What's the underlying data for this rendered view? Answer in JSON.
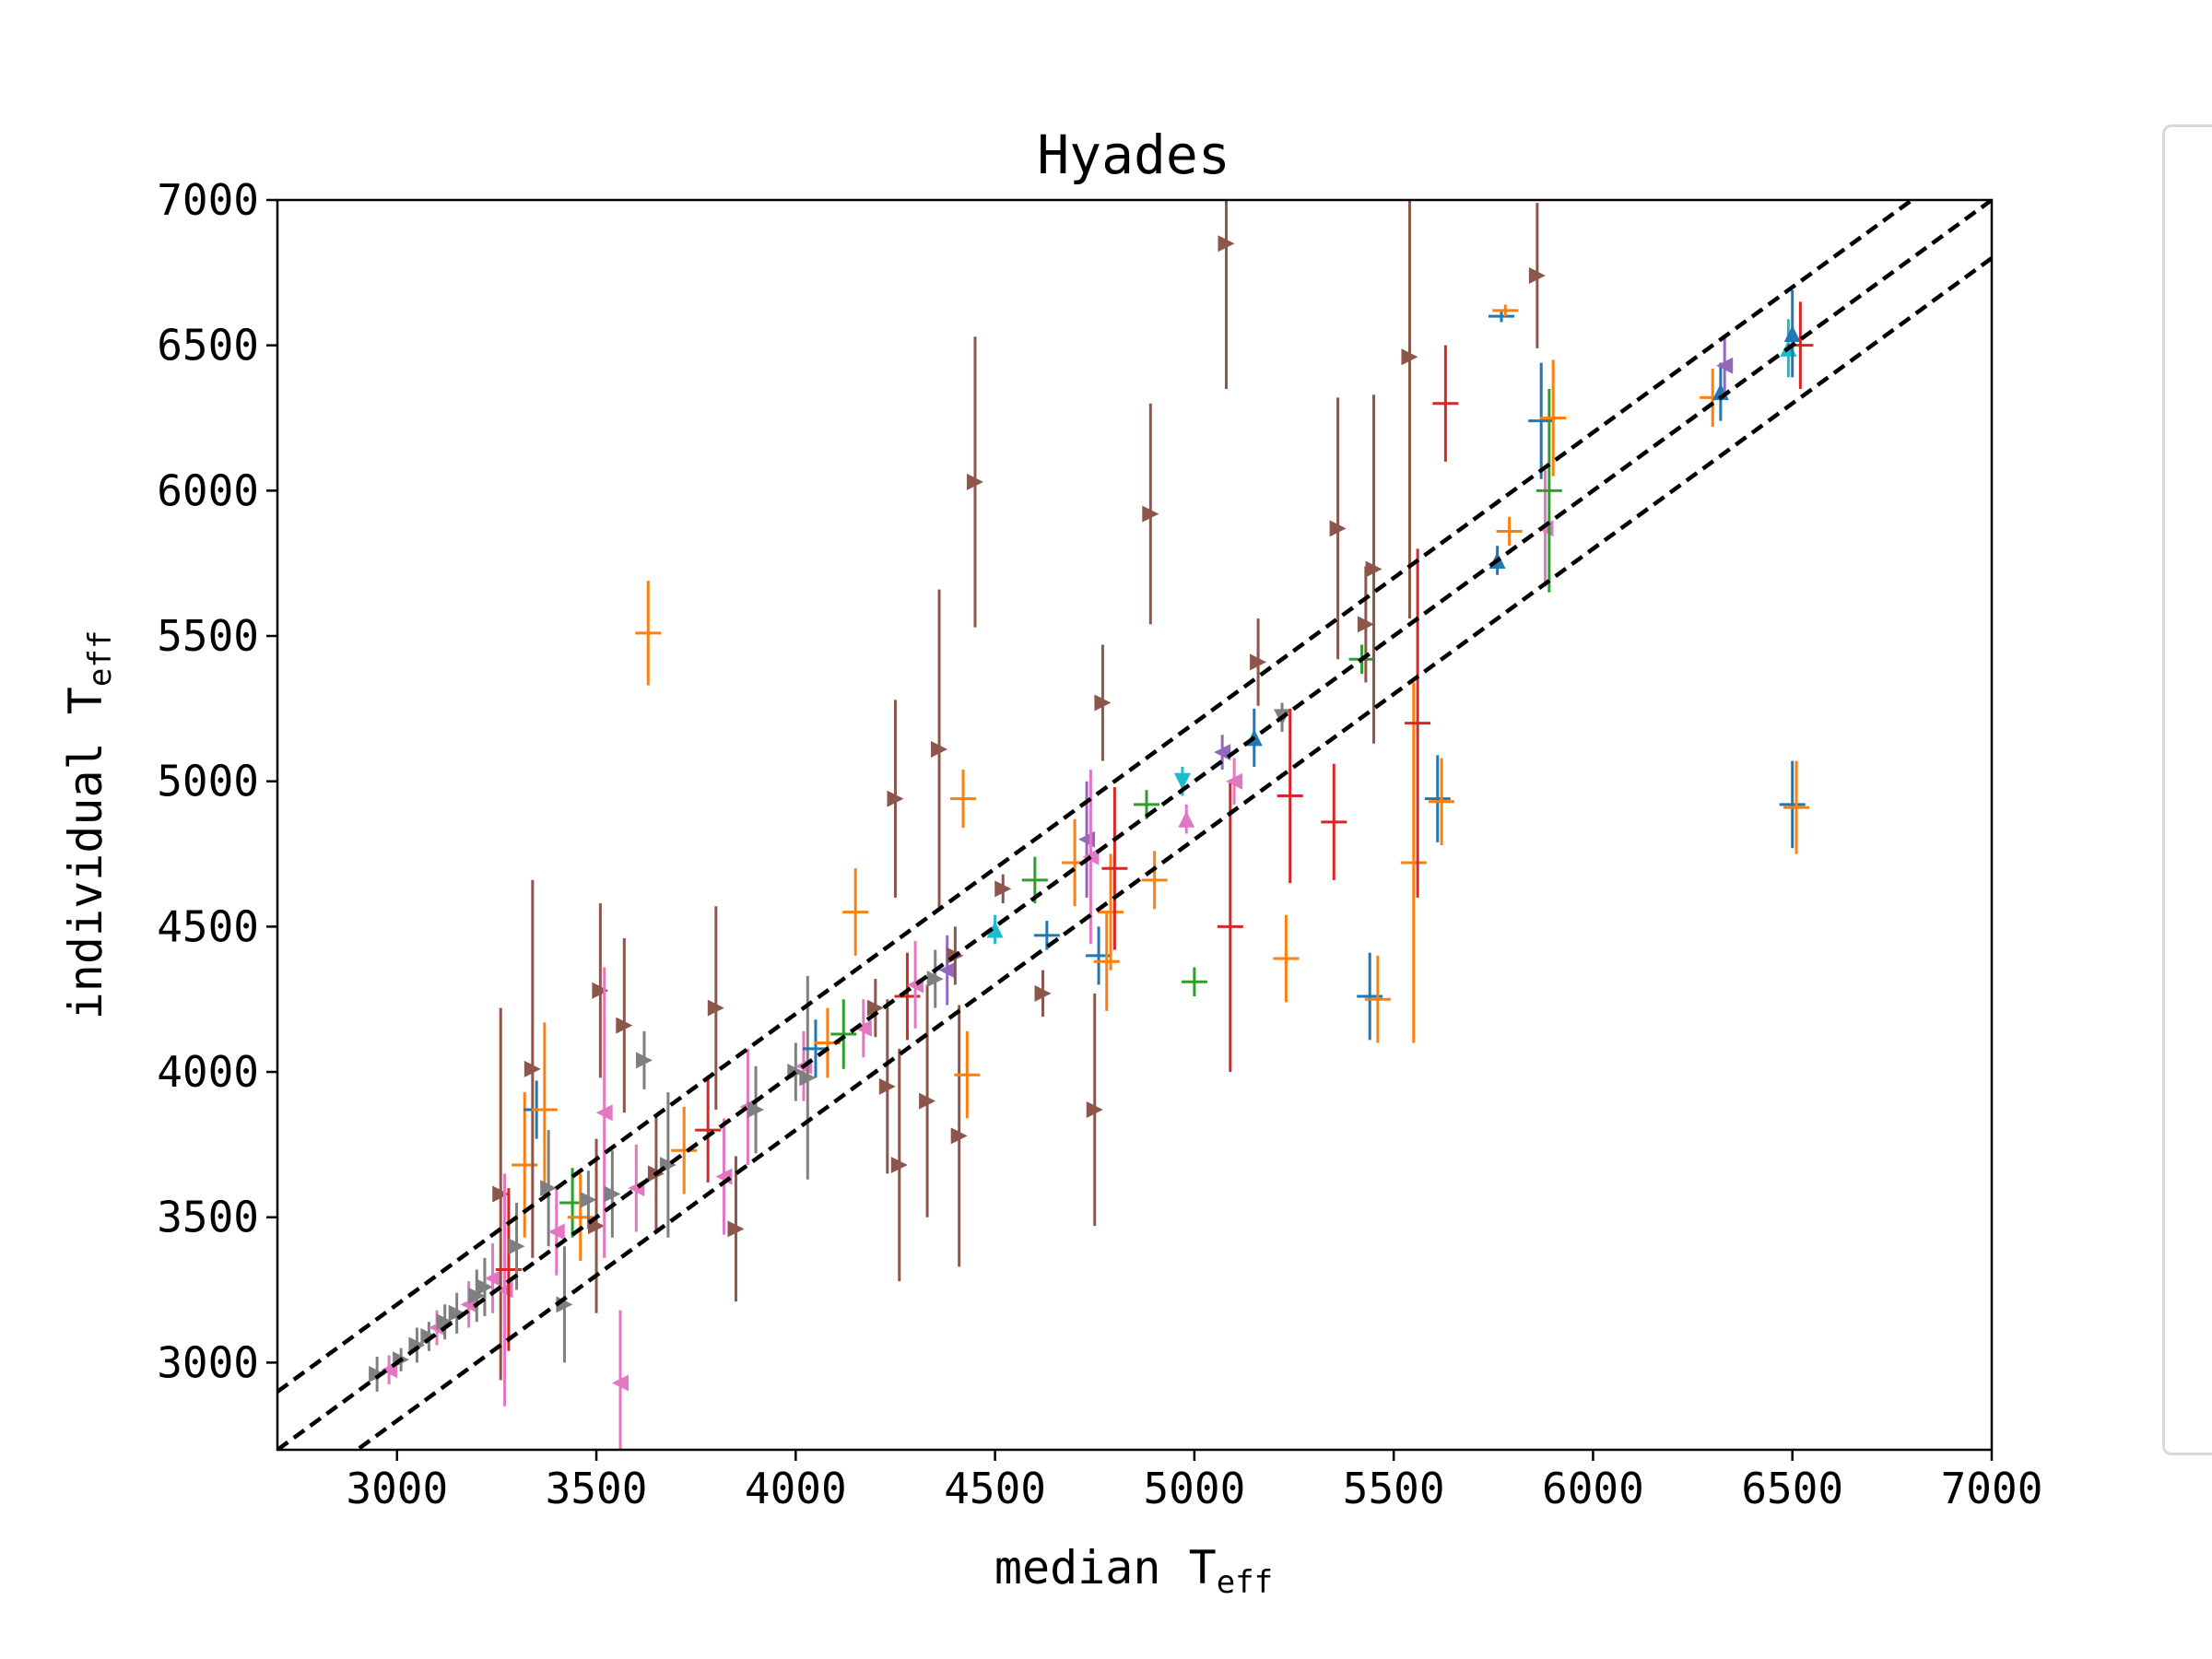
{
  "chart_data": {
    "type": "scatter",
    "title": "Hyades",
    "xlabel": "median T",
    "xlabel_sub": "eff",
    "ylabel": "individual T",
    "ylabel_sub": "eff",
    "xlim": [
      2700,
      7000
    ],
    "ylim": [
      2700,
      7000
    ],
    "xticks": [
      "3000",
      "3500",
      "4000",
      "4500",
      "5000",
      "5500",
      "6000",
      "6500",
      "7000"
    ],
    "yticks": [
      "3000",
      "3500",
      "4000",
      "4500",
      "5000",
      "5500",
      "6000",
      "6500",
      "7000"
    ],
    "grid": false,
    "legend": "right (cropped)",
    "reference_lines": [
      {
        "style": "dashed",
        "color": "#000000",
        "offset": 0,
        "label": ""
      },
      {
        "style": "dashed",
        "color": "#000000",
        "offset": 200,
        "label": ""
      },
      {
        "style": "dashed",
        "color": "#000000",
        "offset": -200,
        "label": ""
      }
    ],
    "series_colors": [
      "#1f77b4",
      "#ff7f0e",
      "#2ca02c",
      "#d62728",
      "#9467bd",
      "#8c564b",
      "#e377c2",
      "#7f7f7f",
      "#17becf"
    ],
    "points": [
      {
        "x": 2950,
        "y": 2960,
        "err": 60,
        "c": 7,
        "m": "right"
      },
      {
        "x": 2980,
        "y": 2975,
        "err": 50,
        "c": 6,
        "m": "left"
      },
      {
        "x": 3010,
        "y": 3010,
        "err": 40,
        "c": 7,
        "m": "right"
      },
      {
        "x": 3050,
        "y": 3060,
        "err": 60,
        "c": 7,
        "m": "right"
      },
      {
        "x": 3080,
        "y": 3090,
        "err": 50,
        "c": 7,
        "m": "right"
      },
      {
        "x": 3100,
        "y": 3120,
        "err": 60,
        "c": 6,
        "m": "left"
      },
      {
        "x": 3120,
        "y": 3140,
        "err": 60,
        "c": 7,
        "m": "right"
      },
      {
        "x": 3150,
        "y": 3170,
        "err": 70,
        "c": 7,
        "m": "right"
      },
      {
        "x": 3180,
        "y": 3200,
        "err": 80,
        "c": 6,
        "m": "left"
      },
      {
        "x": 3200,
        "y": 3230,
        "err": 90,
        "c": 7,
        "m": "right"
      },
      {
        "x": 3220,
        "y": 3260,
        "err": 100,
        "c": 7,
        "m": "right"
      },
      {
        "x": 3240,
        "y": 3290,
        "err": 120,
        "c": 6,
        "m": "left"
      },
      {
        "x": 3260,
        "y": 3580,
        "err": 640,
        "c": 5,
        "m": "right"
      },
      {
        "x": 3270,
        "y": 3250,
        "err": 400,
        "c": 6,
        "m": "left"
      },
      {
        "x": 3280,
        "y": 3320,
        "err": 280,
        "c": 3,
        "m": "tick"
      },
      {
        "x": 3300,
        "y": 3400,
        "err": 150,
        "c": 7,
        "m": "right"
      },
      {
        "x": 3320,
        "y": 3680,
        "err": 250,
        "c": 1,
        "m": "tick"
      },
      {
        "x": 3340,
        "y": 4010,
        "err": 650,
        "c": 5,
        "m": "right"
      },
      {
        "x": 3350,
        "y": 3870,
        "err": 100,
        "c": 0,
        "m": "tick"
      },
      {
        "x": 3370,
        "y": 3870,
        "err": 300,
        "c": 1,
        "m": "tick"
      },
      {
        "x": 3380,
        "y": 3600,
        "err": 200,
        "c": 7,
        "m": "right"
      },
      {
        "x": 3400,
        "y": 3450,
        "err": 150,
        "c": 6,
        "m": "left"
      },
      {
        "x": 3420,
        "y": 3200,
        "err": 200,
        "c": 7,
        "m": "right"
      },
      {
        "x": 3440,
        "y": 3550,
        "err": 120,
        "c": 2,
        "m": "tick"
      },
      {
        "x": 3460,
        "y": 3500,
        "err": 150,
        "c": 1,
        "m": "tick"
      },
      {
        "x": 3480,
        "y": 3560,
        "err": 100,
        "c": 7,
        "m": "right"
      },
      {
        "x": 3500,
        "y": 3470,
        "err": 300,
        "c": 5,
        "m": "right"
      },
      {
        "x": 3510,
        "y": 4280,
        "err": 300,
        "c": 5,
        "m": "right"
      },
      {
        "x": 3520,
        "y": 3860,
        "err": 500,
        "c": 6,
        "m": "left"
      },
      {
        "x": 3540,
        "y": 3580,
        "err": 150,
        "c": 7,
        "m": "right"
      },
      {
        "x": 3560,
        "y": 2930,
        "err": 250,
        "c": 6,
        "m": "left"
      },
      {
        "x": 3570,
        "y": 4160,
        "err": 300,
        "c": 5,
        "m": "right"
      },
      {
        "x": 3600,
        "y": 3600,
        "err": 150,
        "c": 6,
        "m": "left"
      },
      {
        "x": 3620,
        "y": 4040,
        "err": 100,
        "c": 7,
        "m": "right"
      },
      {
        "x": 3630,
        "y": 5510,
        "err": 180,
        "c": 1,
        "m": "tick"
      },
      {
        "x": 3650,
        "y": 3650,
        "err": 200,
        "c": 5,
        "m": "right"
      },
      {
        "x": 3680,
        "y": 3680,
        "err": 250,
        "c": 7,
        "m": "right"
      },
      {
        "x": 3720,
        "y": 3730,
        "err": 150,
        "c": 1,
        "m": "tick"
      },
      {
        "x": 3780,
        "y": 3800,
        "err": 180,
        "c": 3,
        "m": "tick"
      },
      {
        "x": 3800,
        "y": 4220,
        "err": 350,
        "c": 5,
        "m": "right"
      },
      {
        "x": 3820,
        "y": 3640,
        "err": 200,
        "c": 6,
        "m": "left"
      },
      {
        "x": 3850,
        "y": 3460,
        "err": 250,
        "c": 5,
        "m": "right"
      },
      {
        "x": 3880,
        "y": 3880,
        "err": 200,
        "c": 6,
        "m": "left"
      },
      {
        "x": 3900,
        "y": 3870,
        "err": 150,
        "c": 7,
        "m": "right"
      },
      {
        "x": 4000,
        "y": 4000,
        "err": 100,
        "c": 7,
        "m": "right"
      },
      {
        "x": 4020,
        "y": 4020,
        "err": 120,
        "c": 6,
        "m": "left"
      },
      {
        "x": 4030,
        "y": 3980,
        "err": 350,
        "c": 7,
        "m": "right"
      },
      {
        "x": 4050,
        "y": 4080,
        "err": 100,
        "c": 0,
        "m": "tick"
      },
      {
        "x": 4080,
        "y": 4100,
        "err": 120,
        "c": 1,
        "m": "tick"
      },
      {
        "x": 4120,
        "y": 4130,
        "err": 120,
        "c": 2,
        "m": "tick"
      },
      {
        "x": 4150,
        "y": 4550,
        "err": 150,
        "c": 1,
        "m": "tick"
      },
      {
        "x": 4170,
        "y": 4150,
        "err": 100,
        "c": 6,
        "m": "left"
      },
      {
        "x": 4200,
        "y": 4220,
        "err": 100,
        "c": 5,
        "m": "right"
      },
      {
        "x": 4230,
        "y": 3950,
        "err": 300,
        "c": 5,
        "m": "right"
      },
      {
        "x": 4250,
        "y": 4940,
        "err": 340,
        "c": 5,
        "m": "right"
      },
      {
        "x": 4260,
        "y": 3680,
        "err": 400,
        "c": 5,
        "m": "right"
      },
      {
        "x": 4280,
        "y": 4260,
        "err": 150,
        "c": 3,
        "m": "tick"
      },
      {
        "x": 4300,
        "y": 4300,
        "err": 150,
        "c": 6,
        "m": "left"
      },
      {
        "x": 4330,
        "y": 3900,
        "err": 400,
        "c": 5,
        "m": "right"
      },
      {
        "x": 4350,
        "y": 4320,
        "err": 100,
        "c": 7,
        "m": "right"
      },
      {
        "x": 4360,
        "y": 5110,
        "err": 550,
        "c": 5,
        "m": "right"
      },
      {
        "x": 4380,
        "y": 4350,
        "err": 120,
        "c": 4,
        "m": "left"
      },
      {
        "x": 4400,
        "y": 4400,
        "err": 100,
        "c": 5,
        "m": "right"
      },
      {
        "x": 4410,
        "y": 3780,
        "err": 450,
        "c": 5,
        "m": "right"
      },
      {
        "x": 4420,
        "y": 4940,
        "err": 100,
        "c": 1,
        "m": "tick"
      },
      {
        "x": 4430,
        "y": 3990,
        "err": 150,
        "c": 1,
        "m": "tick"
      },
      {
        "x": 4450,
        "y": 6030,
        "err": 500,
        "c": 5,
        "m": "right"
      },
      {
        "x": 4500,
        "y": 4490,
        "err": 50,
        "c": 8,
        "m": "up"
      },
      {
        "x": 4520,
        "y": 4630,
        "err": 50,
        "c": 5,
        "m": "right"
      },
      {
        "x": 4600,
        "y": 4660,
        "err": 80,
        "c": 2,
        "m": "tick"
      },
      {
        "x": 4620,
        "y": 4270,
        "err": 80,
        "c": 5,
        "m": "right"
      },
      {
        "x": 4630,
        "y": 4470,
        "err": 50,
        "c": 0,
        "m": "tick"
      },
      {
        "x": 4700,
        "y": 4720,
        "err": 150,
        "c": 1,
        "m": "tick"
      },
      {
        "x": 4730,
        "y": 4800,
        "err": 200,
        "c": 4,
        "m": "left"
      },
      {
        "x": 4740,
        "y": 4740,
        "err": 300,
        "c": 6,
        "m": "left"
      },
      {
        "x": 4750,
        "y": 3870,
        "err": 400,
        "c": 5,
        "m": "right"
      },
      {
        "x": 4760,
        "y": 4400,
        "err": 100,
        "c": 0,
        "m": "tick"
      },
      {
        "x": 4770,
        "y": 5270,
        "err": 200,
        "c": 5,
        "m": "right"
      },
      {
        "x": 4780,
        "y": 4380,
        "err": 170,
        "c": 1,
        "m": "tick"
      },
      {
        "x": 4790,
        "y": 4550,
        "err": 200,
        "c": 1,
        "m": "tick"
      },
      {
        "x": 4800,
        "y": 4700,
        "err": 280,
        "c": 3,
        "m": "tick"
      },
      {
        "x": 4880,
        "y": 4920,
        "err": 50,
        "c": 2,
        "m": "tick"
      },
      {
        "x": 4890,
        "y": 5920,
        "err": 380,
        "c": 5,
        "m": "right"
      },
      {
        "x": 4900,
        "y": 4660,
        "err": 100,
        "c": 1,
        "m": "tick"
      },
      {
        "x": 4970,
        "y": 5000,
        "err": 50,
        "c": 8,
        "m": "down"
      },
      {
        "x": 4980,
        "y": 4870,
        "err": 50,
        "c": 6,
        "m": "up"
      },
      {
        "x": 5000,
        "y": 4310,
        "err": 50,
        "c": 2,
        "m": "tick"
      },
      {
        "x": 5070,
        "y": 5100,
        "err": 60,
        "c": 4,
        "m": "left"
      },
      {
        "x": 5080,
        "y": 6850,
        "err": 500,
        "c": 5,
        "m": "right"
      },
      {
        "x": 5090,
        "y": 4500,
        "err": 500,
        "c": 3,
        "m": "tick"
      },
      {
        "x": 5100,
        "y": 5000,
        "err": 80,
        "c": 6,
        "m": "left"
      },
      {
        "x": 5150,
        "y": 5150,
        "err": 100,
        "c": 0,
        "m": "up"
      },
      {
        "x": 5160,
        "y": 5410,
        "err": 150,
        "c": 5,
        "m": "right"
      },
      {
        "x": 5220,
        "y": 5220,
        "err": 50,
        "c": 7,
        "m": "down"
      },
      {
        "x": 5230,
        "y": 4390,
        "err": 150,
        "c": 1,
        "m": "tick"
      },
      {
        "x": 5240,
        "y": 4950,
        "err": 300,
        "c": 3,
        "m": "tick"
      },
      {
        "x": 5350,
        "y": 4860,
        "err": 200,
        "c": 3,
        "m": "tick"
      },
      {
        "x": 5360,
        "y": 5870,
        "err": 450,
        "c": 5,
        "m": "right"
      },
      {
        "x": 5420,
        "y": 5420,
        "err": 50,
        "c": 2,
        "m": "tick"
      },
      {
        "x": 5430,
        "y": 5540,
        "err": 200,
        "c": 5,
        "m": "right"
      },
      {
        "x": 5440,
        "y": 4260,
        "err": 150,
        "c": 0,
        "m": "tick"
      },
      {
        "x": 5450,
        "y": 5730,
        "err": 600,
        "c": 5,
        "m": "right"
      },
      {
        "x": 5460,
        "y": 4250,
        "err": 150,
        "c": 1,
        "m": "tick"
      },
      {
        "x": 5540,
        "y": 6460,
        "err": 900,
        "c": 5,
        "m": "right"
      },
      {
        "x": 5550,
        "y": 4720,
        "err": 620,
        "c": 1,
        "m": "tick"
      },
      {
        "x": 5560,
        "y": 5200,
        "err": 600,
        "c": 3,
        "m": "tick"
      },
      {
        "x": 5610,
        "y": 4940,
        "err": 150,
        "c": 0,
        "m": "tick"
      },
      {
        "x": 5620,
        "y": 4930,
        "err": 150,
        "c": 1,
        "m": "tick"
      },
      {
        "x": 5630,
        "y": 6300,
        "err": 200,
        "c": 3,
        "m": "tick"
      },
      {
        "x": 5760,
        "y": 5760,
        "err": 50,
        "c": 0,
        "m": "up"
      },
      {
        "x": 5770,
        "y": 6600,
        "err": 20,
        "c": 0,
        "m": "tick"
      },
      {
        "x": 5780,
        "y": 6620,
        "err": 20,
        "c": 1,
        "m": "tick"
      },
      {
        "x": 5790,
        "y": 5860,
        "err": 50,
        "c": 1,
        "m": "tick"
      },
      {
        "x": 5860,
        "y": 6740,
        "err": 250,
        "c": 5,
        "m": "right"
      },
      {
        "x": 5870,
        "y": 6240,
        "err": 200,
        "c": 0,
        "m": "tick"
      },
      {
        "x": 5880,
        "y": 5870,
        "err": 200,
        "c": 6,
        "m": "left"
      },
      {
        "x": 5890,
        "y": 6000,
        "err": 350,
        "c": 2,
        "m": "tick"
      },
      {
        "x": 5900,
        "y": 6250,
        "err": 200,
        "c": 1,
        "m": "tick"
      },
      {
        "x": 6300,
        "y": 6320,
        "err": 100,
        "c": 1,
        "m": "tick"
      },
      {
        "x": 6320,
        "y": 6340,
        "err": 100,
        "c": 0,
        "m": "up"
      },
      {
        "x": 6330,
        "y": 6430,
        "err": 100,
        "c": 4,
        "m": "left"
      },
      {
        "x": 6490,
        "y": 6490,
        "err": 100,
        "c": 8,
        "m": "up"
      },
      {
        "x": 6500,
        "y": 6540,
        "err": 150,
        "c": 0,
        "m": "up"
      },
      {
        "x": 6500,
        "y": 4920,
        "err": 150,
        "c": 0,
        "m": "tick"
      },
      {
        "x": 6510,
        "y": 4910,
        "err": 160,
        "c": 1,
        "m": "tick"
      },
      {
        "x": 6520,
        "y": 6500,
        "err": 150,
        "c": 3,
        "m": "tick"
      }
    ]
  }
}
